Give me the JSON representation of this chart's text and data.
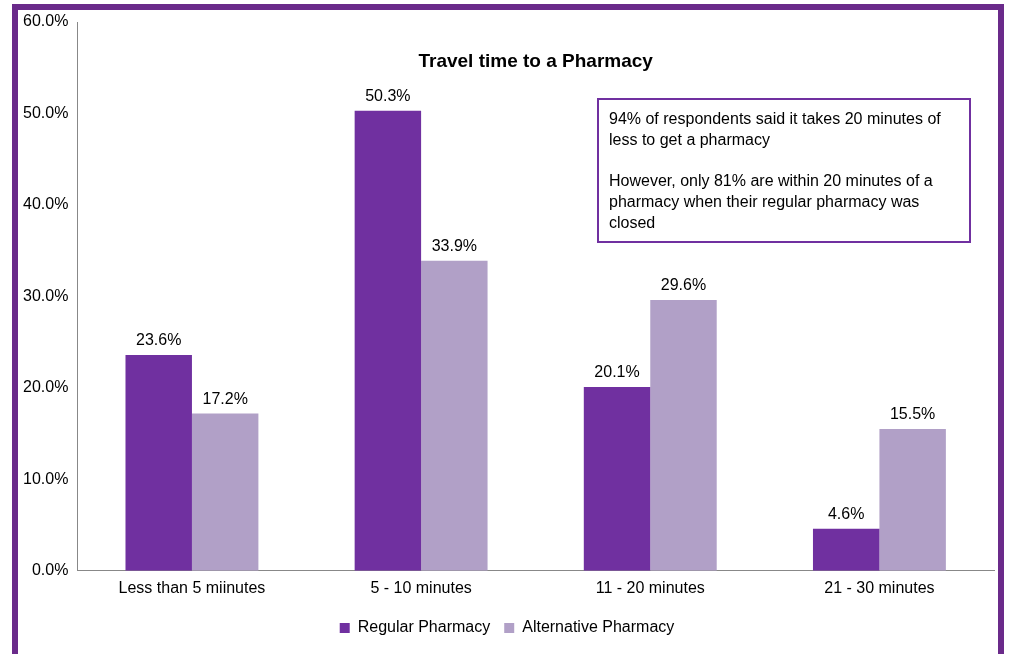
{
  "chart_data": {
    "type": "bar",
    "title": "Travel time to a Pharmacy",
    "categories": [
      "Less than 5 miinutes",
      "5 - 10 minutes",
      "11 - 20 minutes",
      "21 - 30 minutes"
    ],
    "series": [
      {
        "name": "Regular Pharmacy",
        "color": "#7030a0",
        "values": [
          23.6,
          50.3,
          20.1,
          4.6
        ],
        "value_labels": [
          "23.6%",
          "50.3%",
          "20.1%",
          "4.6%"
        ]
      },
      {
        "name": "Alternative Pharmacy",
        "color": "#b1a0c7",
        "values": [
          17.2,
          33.9,
          29.6,
          15.5
        ],
        "value_labels": [
          "17.2%",
          "33.9%",
          "29.6%",
          "15.5%"
        ]
      }
    ],
    "ylim": [
      0,
      60
    ],
    "yticks": [
      {
        "value": 0,
        "label": "0.0%"
      },
      {
        "value": 10,
        "label": "10.0%"
      },
      {
        "value": 20,
        "label": "20.0%"
      },
      {
        "value": 30,
        "label": "30.0%"
      },
      {
        "value": 40,
        "label": "40.0%"
      },
      {
        "value": 50,
        "label": "50.0%"
      },
      {
        "value": 60,
        "label": "60.0%"
      }
    ],
    "annotations": [
      "94% of  respondents said it takes 20 minutes of less to get a pharmacy",
      "However, only 81% are within 20 minutes of a pharmacy when their regular pharmacy was closed"
    ],
    "legend": "bottom",
    "grid": false
  }
}
